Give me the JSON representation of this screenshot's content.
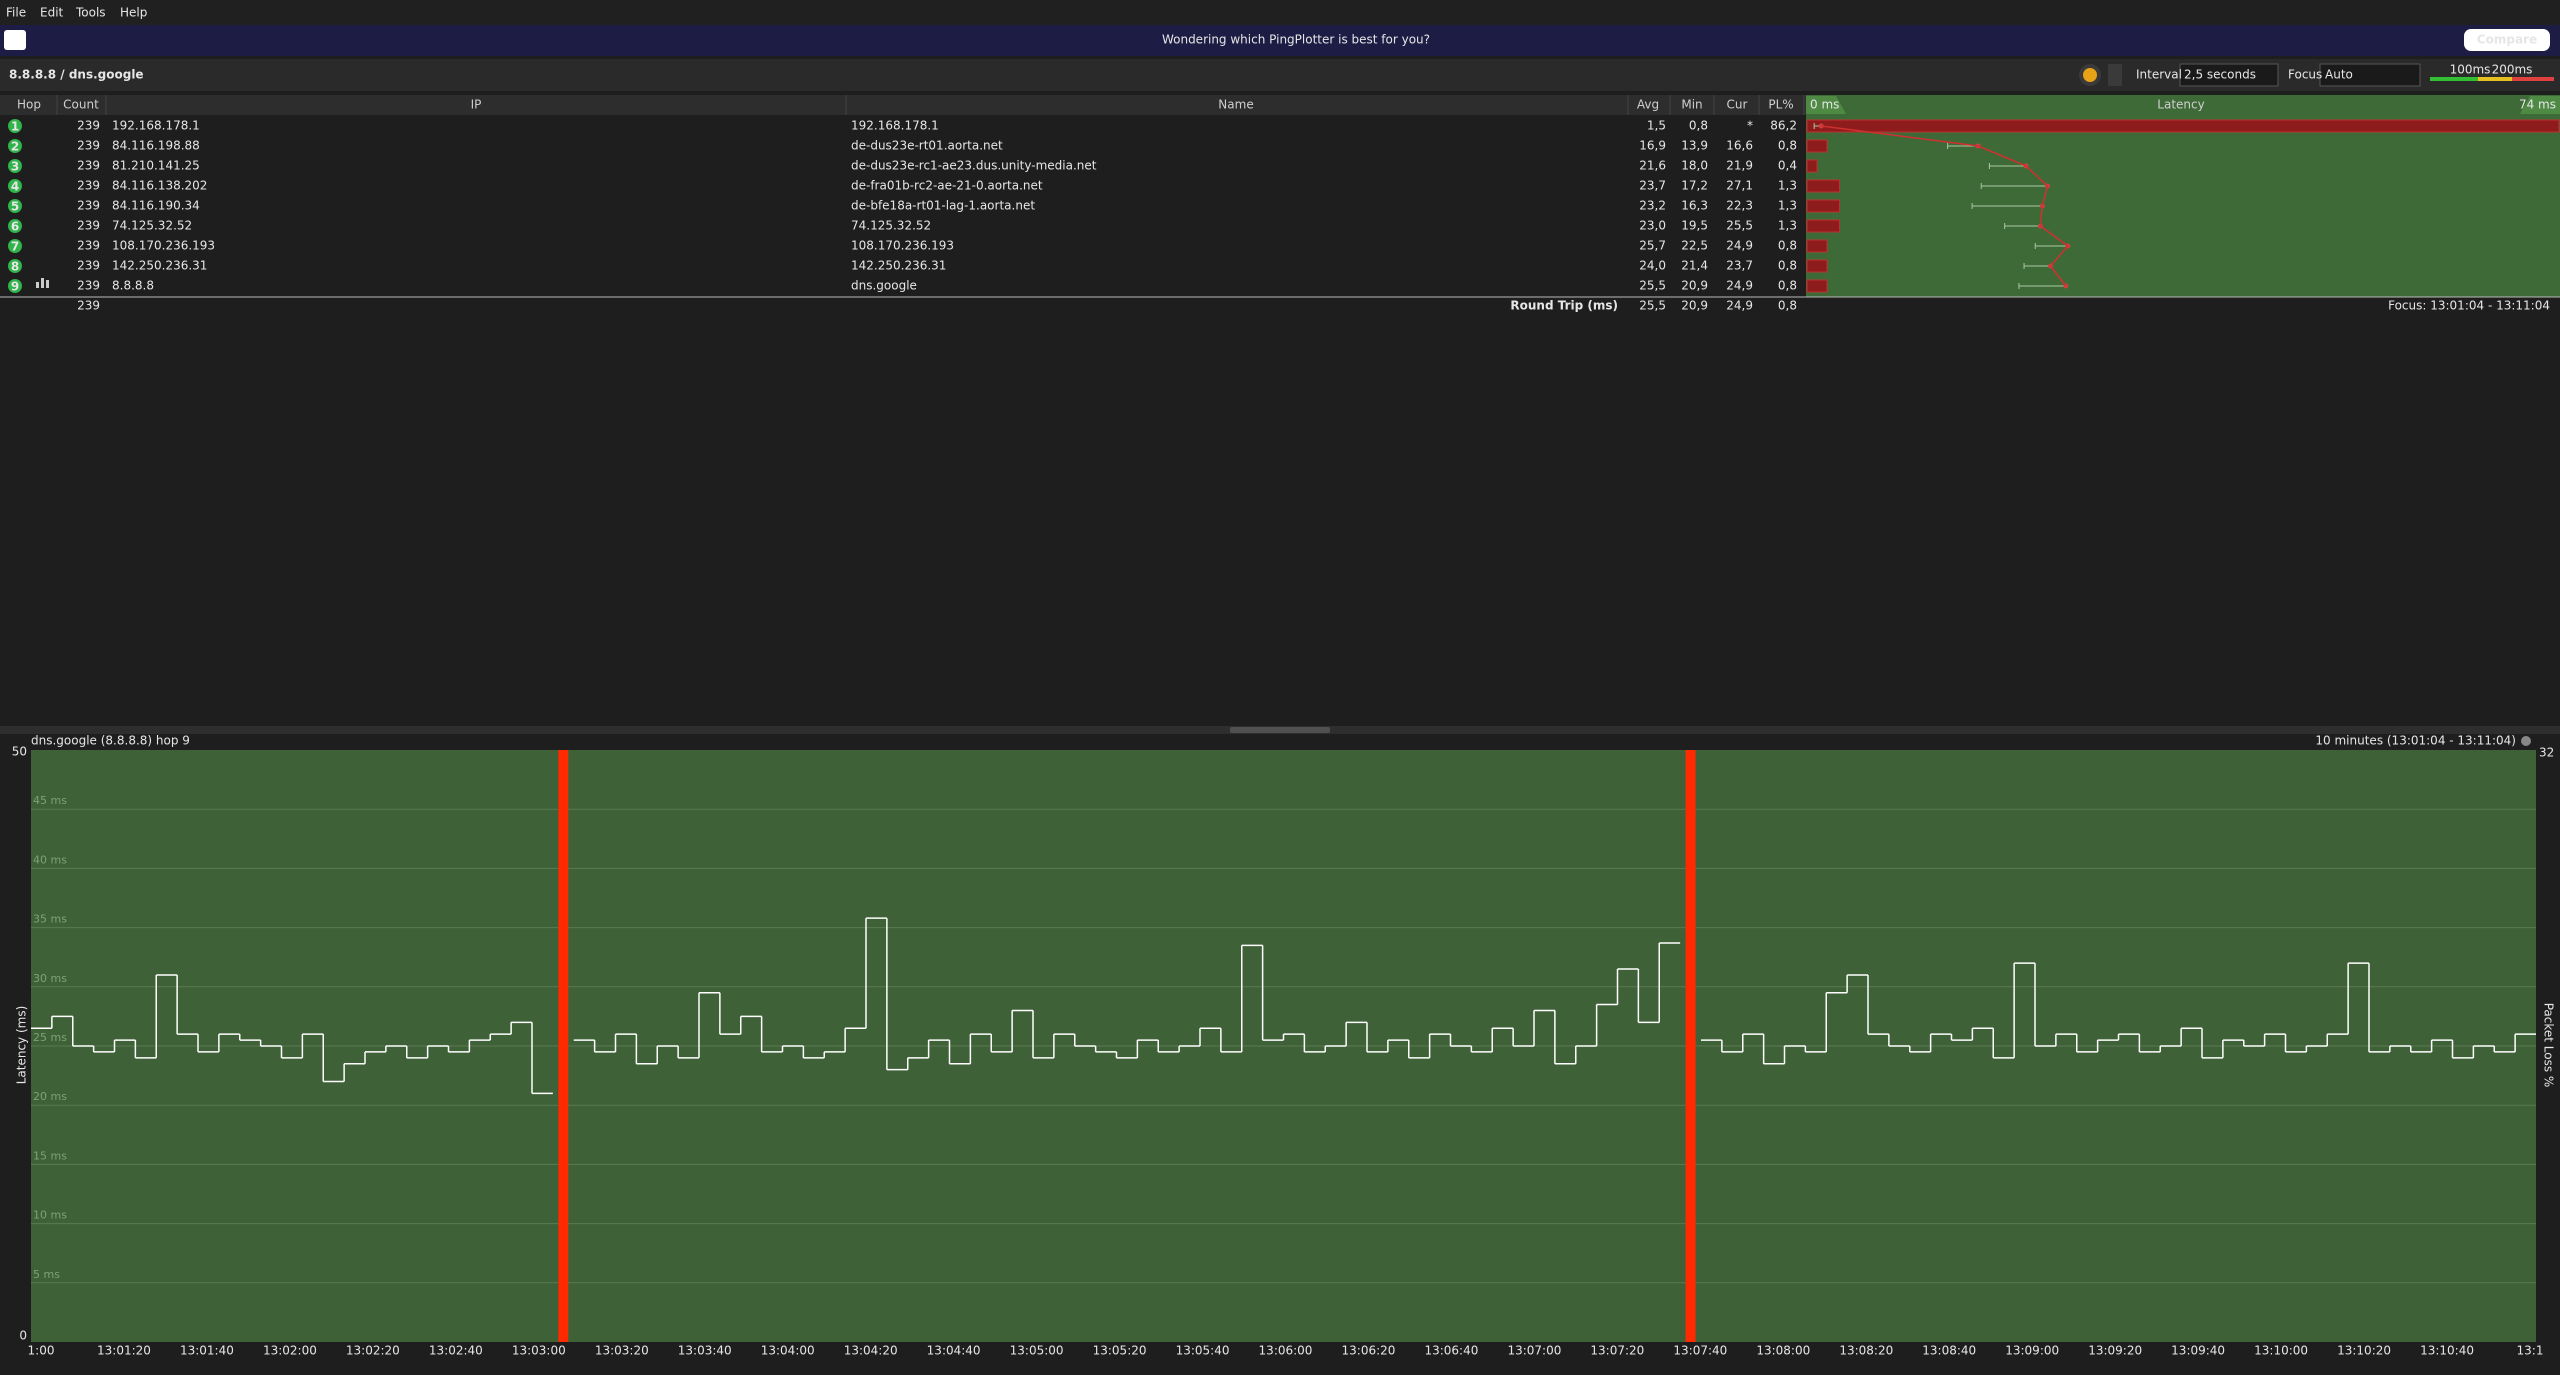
{
  "menu": [
    "File",
    "Edit",
    "Tools",
    "Help"
  ],
  "banner": {
    "text": "Wondering which PingPlotter is best for you?",
    "button": "Compare"
  },
  "toolbar": {
    "target": "8.8.8.8 / dns.google",
    "interval_label": "Interval",
    "interval": "2,5 seconds",
    "focus_label": "Focus",
    "focus": "Auto",
    "legend": [
      "100ms",
      "200ms"
    ]
  },
  "table": {
    "columns": [
      "Hop",
      "Count",
      "IP",
      "Name",
      "Avg",
      "Min",
      "Cur",
      "PL%",
      "Latency"
    ],
    "latency_scale": [
      {
        "value": 0,
        "label": "0 ms"
      },
      {
        "value": 74,
        "label": "74 ms"
      }
    ],
    "rows": [
      [
        "1",
        "239",
        "192.168.178.1",
        "192.168.178.1",
        "1,5",
        "0,8",
        "*",
        "86,2"
      ],
      [
        "2",
        "239",
        "84.116.198.88",
        "de-dus23e-rt01.aorta.net",
        "16,9",
        "13,9",
        "16,6",
        "0,8"
      ],
      [
        "3",
        "239",
        "81.210.141.25",
        "de-dus23e-rc1-ae23.dus.unity-media.net",
        "21,6",
        "18,0",
        "21,9",
        "0,4"
      ],
      [
        "4",
        "239",
        "84.116.138.202",
        "de-fra01b-rc2-ae-21-0.aorta.net",
        "23,7",
        "17,2",
        "27,1",
        "1,3"
      ],
      [
        "5",
        "239",
        "84.116.190.34",
        "de-bfe18a-rt01-lag-1.aorta.net",
        "23,2",
        "16,3",
        "22,3",
        "1,3"
      ],
      [
        "6",
        "239",
        "74.125.32.52",
        "74.125.32.52",
        "23,0",
        "19,5",
        "25,5",
        "1,3"
      ],
      [
        "7",
        "239",
        "108.170.236.193",
        "108.170.236.193",
        "25,7",
        "22,5",
        "24,9",
        "0,8"
      ],
      [
        "8",
        "239",
        "142.250.236.31",
        "142.250.236.31",
        "24,0",
        "21,4",
        "23,7",
        "0,8"
      ],
      [
        "9",
        "239",
        "8.8.8.8",
        "dns.google",
        "25,5",
        "20,9",
        "24,9",
        "0,8"
      ]
    ],
    "summary": {
      "count": "239",
      "label": "Round Trip (ms)",
      "values": [
        "25,5",
        "20,9",
        "24,9",
        "0,8"
      ],
      "focus": "Focus: 13:01:04 - 13:11:04"
    }
  },
  "graph": {
    "title": "dns.google (8.8.8.8) hop 9",
    "range": "10 minutes (13:01:04 - 13:11:04)",
    "y_label": "Latency (ms)",
    "y2_label": "Packet Loss %",
    "y2_top": "32",
    "ylim": [
      0,
      50
    ],
    "yticks": [
      0,
      {
        "value": 5,
        "label": "5 ms"
      },
      {
        "value": 10,
        "label": "10 ms"
      },
      {
        "value": 15,
        "label": "15 ms"
      },
      {
        "value": 20,
        "label": "20 ms"
      },
      {
        "value": 25,
        "label": "25 ms"
      },
      {
        "value": 30,
        "label": "30 ms"
      },
      {
        "value": 35,
        "label": "35 ms"
      },
      {
        "value": 40,
        "label": "40 ms"
      },
      {
        "value": 45,
        "label": "45 ms"
      },
      50
    ],
    "xticks": [
      "1:00",
      "13:01:20",
      "13:01:40",
      "13:02:00",
      "13:02:20",
      "13:02:40",
      "13:03:00",
      "13:03:20",
      "13:03:40",
      "13:04:00",
      "13:04:20",
      "13:04:40",
      "13:05:00",
      "13:05:20",
      "13:05:40",
      "13:06:00",
      "13:06:20",
      "13:06:40",
      "13:07:00",
      "13:07:20",
      "13:07:40",
      "13:08:00",
      "13:08:20",
      "13:08:40",
      "13:09:00",
      "13:09:20",
      "13:09:40",
      "13:10:00",
      "13:10:20",
      "13:10:40",
      "13:1"
    ],
    "values": [
      26.5,
      27.5,
      25,
      24.5,
      25.5,
      24,
      31,
      26,
      24.5,
      26,
      25.5,
      25,
      24,
      26,
      22,
      23.5,
      24.5,
      25,
      24,
      25,
      24.5,
      25.5,
      26,
      27,
      21,
      null,
      25.5,
      24.5,
      26,
      23.5,
      25,
      24,
      29.5,
      26,
      27.5,
      24.5,
      25,
      24,
      24.5,
      26.5,
      35.8,
      23,
      24,
      25.5,
      23.5,
      26,
      24.5,
      28,
      24,
      26,
      25,
      24.5,
      24,
      25.5,
      24.5,
      25,
      26.5,
      24.5,
      33.5,
      25.5,
      26,
      24.5,
      25,
      27,
      24.5,
      25.5,
      24,
      26,
      25,
      24.5,
      26.5,
      25,
      28,
      23.5,
      25,
      28.5,
      31.5,
      27,
      33.7,
      null,
      25.5,
      24.5,
      26,
      23.5,
      25,
      24.5,
      29.5,
      31,
      26,
      25,
      24.5,
      26,
      25.5,
      26.5,
      24,
      32,
      25,
      26,
      24.5,
      25.5,
      26,
      24.5,
      25,
      26.5,
      24,
      25.5,
      25,
      26,
      24.5,
      25,
      26,
      32,
      24.5,
      25,
      24.5,
      25.5,
      24,
      25,
      24.5,
      26
    ]
  }
}
